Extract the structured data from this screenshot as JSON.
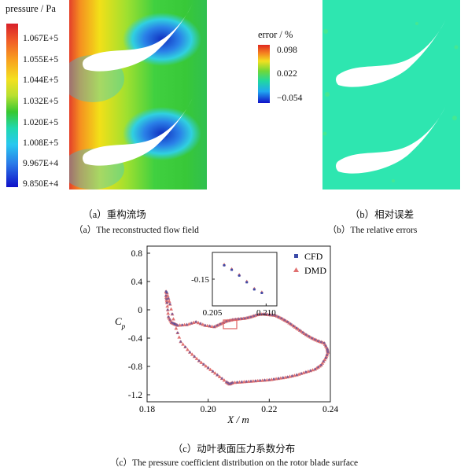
{
  "panel_a": {
    "colorbar_title": "pressure / Pa",
    "colorbar_ticks": [
      "1.067E+5",
      "1.055E+5",
      "1.044E+5",
      "1.032E+5",
      "1.020E+5",
      "1.008E+5",
      "9.967E+4",
      "9.850E+4"
    ],
    "caption_cn": "（a）重构流场",
    "caption_en": "（a）The reconstructed flow field"
  },
  "panel_b": {
    "colorbar_title": "error / %",
    "colorbar_ticks": [
      "0.098",
      "0.022",
      "−0.054"
    ],
    "caption_cn": "（b）相对误差",
    "caption_en": "（b）The relative errors"
  },
  "panel_c": {
    "caption_cn": "（c）动叶表面压力系数分布",
    "caption_en": "（c）The pressure coefficient distribution on the rotor blade surface"
  },
  "colors": {
    "cfd": "#3b4aa8",
    "dmd": "#e07070",
    "highlight": "#e06060"
  },
  "chart_data": {
    "type": "scatter",
    "xlabel": "X / m",
    "ylabel": "Cp",
    "xlim": [
      0.18,
      0.24
    ],
    "ylim": [
      -1.3,
      0.9
    ],
    "xticks": [
      "0.18",
      "0.20",
      "0.22",
      "0.24"
    ],
    "yticks": [
      "0.8",
      "0.4",
      "0",
      "-0.4",
      "-0.8",
      "-1.2"
    ],
    "legend": [
      "CFD",
      "DMD"
    ],
    "legend_position": "top-right",
    "series": [
      {
        "name": "CFD",
        "marker": "square",
        "x": [
          0.1862,
          0.1865,
          0.187,
          0.188,
          0.189,
          0.19,
          0.193,
          0.196,
          0.199,
          0.202,
          0.204,
          0.206,
          0.208,
          0.21,
          0.212,
          0.214,
          0.216,
          0.218,
          0.22,
          0.222,
          0.224,
          0.226,
          0.228,
          0.23,
          0.232,
          0.234,
          0.236,
          0.238,
          0.239,
          0.2392,
          0.2385,
          0.237,
          0.235,
          0.232,
          0.229,
          0.226,
          0.223,
          0.22,
          0.217,
          0.214,
          0.211,
          0.208,
          0.207,
          0.206,
          0.203,
          0.2,
          0.197,
          0.194,
          0.191,
          0.189,
          0.1875,
          0.1865,
          0.1862
        ],
        "y": [
          0.2,
          0.1,
          -0.1,
          -0.18,
          -0.2,
          -0.22,
          -0.21,
          -0.17,
          -0.22,
          -0.24,
          -0.2,
          -0.16,
          -0.14,
          -0.13,
          -0.12,
          -0.1,
          -0.07,
          -0.06,
          -0.07,
          -0.08,
          -0.12,
          -0.17,
          -0.23,
          -0.29,
          -0.35,
          -0.4,
          -0.44,
          -0.47,
          -0.55,
          -0.6,
          -0.68,
          -0.78,
          -0.84,
          -0.88,
          -0.92,
          -0.95,
          -0.97,
          -0.99,
          -1.0,
          -1.01,
          -1.02,
          -1.03,
          -1.05,
          -1.02,
          -0.92,
          -0.82,
          -0.72,
          -0.6,
          -0.45,
          -0.2,
          0.08,
          0.24,
          0.26
        ]
      },
      {
        "name": "DMD",
        "marker": "triangle",
        "x": [
          0.1862,
          0.1865,
          0.187,
          0.188,
          0.189,
          0.19,
          0.193,
          0.196,
          0.199,
          0.202,
          0.204,
          0.206,
          0.208,
          0.21,
          0.212,
          0.214,
          0.216,
          0.218,
          0.22,
          0.222,
          0.224,
          0.226,
          0.228,
          0.23,
          0.232,
          0.234,
          0.236,
          0.238,
          0.239,
          0.2392,
          0.2385,
          0.237,
          0.235,
          0.232,
          0.229,
          0.226,
          0.223,
          0.22,
          0.217,
          0.214,
          0.211,
          0.208,
          0.207,
          0.206,
          0.203,
          0.2,
          0.197,
          0.194,
          0.191,
          0.189,
          0.1875,
          0.1865,
          0.1862
        ],
        "y": [
          0.2,
          0.1,
          -0.1,
          -0.18,
          -0.2,
          -0.22,
          -0.21,
          -0.17,
          -0.22,
          -0.24,
          -0.2,
          -0.16,
          -0.14,
          -0.13,
          -0.12,
          -0.1,
          -0.07,
          -0.06,
          -0.07,
          -0.08,
          -0.12,
          -0.17,
          -0.23,
          -0.29,
          -0.35,
          -0.4,
          -0.44,
          -0.47,
          -0.55,
          -0.6,
          -0.68,
          -0.78,
          -0.84,
          -0.88,
          -0.92,
          -0.95,
          -0.97,
          -0.99,
          -1.0,
          -1.01,
          -1.02,
          -1.03,
          -1.05,
          -1.02,
          -0.92,
          -0.82,
          -0.72,
          -0.6,
          -0.45,
          -0.2,
          0.08,
          0.24,
          0.26
        ]
      }
    ],
    "inset": {
      "xticks": [
        "0.205",
        "0.210"
      ],
      "ytick": "-0.15",
      "xlim": [
        0.205,
        0.211
      ],
      "ylim": [
        -0.21,
        -0.09
      ],
      "series": [
        {
          "name": "CFD",
          "x": [
            0.2061,
            0.2068,
            0.2075,
            0.2082,
            0.2089,
            0.2096
          ],
          "y": [
            -0.119,
            -0.129,
            -0.142,
            -0.157,
            -0.173,
            -0.181
          ]
        },
        {
          "name": "DMD",
          "x": [
            0.2061,
            0.2068,
            0.2075,
            0.2082,
            0.2089,
            0.2096
          ],
          "y": [
            -0.117,
            -0.127,
            -0.14,
            -0.155,
            -0.171,
            -0.179
          ]
        }
      ]
    }
  }
}
